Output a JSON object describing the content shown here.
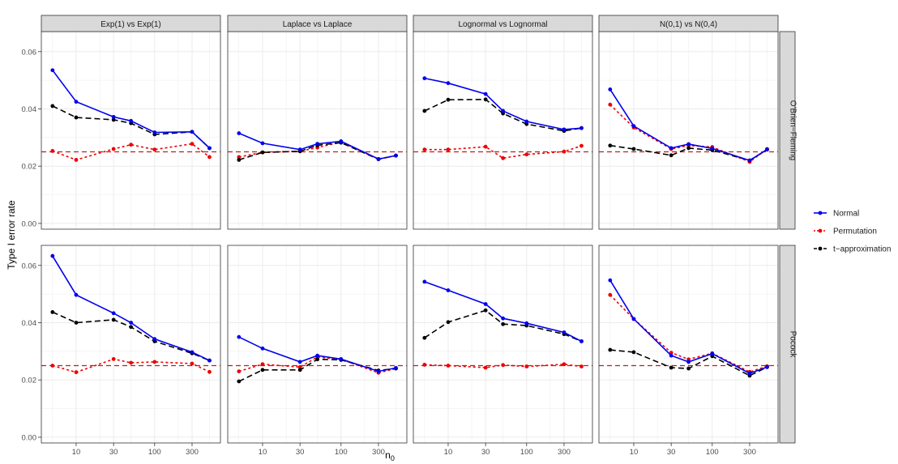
{
  "colors": {
    "normal": "#0000ee",
    "permutation": "#ee0000",
    "t_approximation": "#000000",
    "reference_line": "#b22222",
    "strip_fill": "#d9d9d9",
    "grid": "#ebebeb"
  },
  "chart_data": {
    "type": "line",
    "facet_columns": [
      "Exp(1) vs Exp(1)",
      "Laplace vs Laplace",
      "Lognormal vs Lognormal",
      "N(0,1) vs N(0,4)"
    ],
    "facet_rows": [
      "O'Brien−Fleming",
      "Pocock"
    ],
    "xlabel": "n",
    "xlabel_subscript": "0",
    "ylabel": "Type I error rate",
    "x_scale": "log10",
    "x": [
      5,
      10,
      30,
      50,
      100,
      300,
      500
    ],
    "x_ticks": [
      10,
      30,
      100,
      300
    ],
    "x_tick_labels": [
      "10",
      "30",
      "100",
      "300"
    ],
    "ylim": [
      -0.002,
      0.067
    ],
    "y_ticks": [
      0.0,
      0.02,
      0.04,
      0.06
    ],
    "y_tick_labels": [
      "0.00",
      "0.02",
      "0.04",
      "0.06"
    ],
    "reference_y": 0.025,
    "grid": true,
    "legend_position": "right",
    "legend": [
      {
        "key": "normal",
        "label": "Normal",
        "dash": "solid"
      },
      {
        "key": "permutation",
        "label": "Permutation",
        "dash": "dotted"
      },
      {
        "key": "t_approximation",
        "label": "t−approximation",
        "dash": "dashed"
      }
    ],
    "panels": [
      {
        "row": 0,
        "col": 0,
        "series": {
          "normal": [
            0.0535,
            0.0425,
            0.0372,
            0.0358,
            0.0318,
            0.032,
            0.0263
          ],
          "permutation": [
            0.0253,
            0.0222,
            0.026,
            0.0275,
            0.0258,
            0.0278,
            0.0232
          ],
          "t_approximation": [
            0.041,
            0.037,
            0.0362,
            0.035,
            0.0311,
            0.032,
            0.0263
          ]
        }
      },
      {
        "row": 0,
        "col": 1,
        "series": {
          "normal": [
            0.0315,
            0.028,
            0.0258,
            0.0278,
            0.0287,
            0.0225,
            0.0237
          ],
          "permutation": [
            0.0232,
            0.0248,
            0.0252,
            0.0265,
            0.0284,
            0.0225,
            0.0237
          ],
          "t_approximation": [
            0.0222,
            0.0248,
            0.0252,
            0.0273,
            0.0282,
            0.0224,
            0.0237
          ]
        }
      },
      {
        "row": 0,
        "col": 2,
        "series": {
          "normal": [
            0.0507,
            0.049,
            0.0452,
            0.0393,
            0.0356,
            0.0328,
            0.0333
          ],
          "permutation": [
            0.0258,
            0.0258,
            0.0268,
            0.0228,
            0.0241,
            0.0251,
            0.0271
          ],
          "t_approximation": [
            0.0393,
            0.0432,
            0.0433,
            0.0384,
            0.0347,
            0.0323,
            0.0333
          ]
        }
      },
      {
        "row": 0,
        "col": 3,
        "series": {
          "normal": [
            0.0468,
            0.034,
            0.0263,
            0.0277,
            0.0262,
            0.022,
            0.0258
          ],
          "permutation": [
            0.0415,
            0.0335,
            0.026,
            0.0272,
            0.0267,
            0.0215,
            0.026
          ],
          "t_approximation": [
            0.0272,
            0.026,
            0.0238,
            0.0263,
            0.0256,
            0.022,
            0.0258
          ]
        }
      },
      {
        "row": 1,
        "col": 0,
        "series": {
          "normal": [
            0.0633,
            0.0497,
            0.0433,
            0.04,
            0.0343,
            0.0297,
            0.0268
          ],
          "permutation": [
            0.025,
            0.0227,
            0.0273,
            0.026,
            0.0263,
            0.0257,
            0.0228
          ],
          "t_approximation": [
            0.0437,
            0.04,
            0.041,
            0.0385,
            0.0335,
            0.0293,
            0.0268
          ]
        }
      },
      {
        "row": 1,
        "col": 1,
        "series": {
          "normal": [
            0.035,
            0.031,
            0.0263,
            0.0285,
            0.0273,
            0.023,
            0.0242
          ],
          "permutation": [
            0.023,
            0.0255,
            0.0245,
            0.028,
            0.0272,
            0.0225,
            0.024
          ],
          "t_approximation": [
            0.0195,
            0.0235,
            0.0235,
            0.0272,
            0.027,
            0.0233,
            0.024
          ]
        }
      },
      {
        "row": 1,
        "col": 2,
        "series": {
          "normal": [
            0.0543,
            0.0513,
            0.0465,
            0.0415,
            0.0398,
            0.0366,
            0.0335
          ],
          "permutation": [
            0.0253,
            0.025,
            0.0243,
            0.0252,
            0.0247,
            0.0255,
            0.0247
          ],
          "t_approximation": [
            0.0347,
            0.0402,
            0.0443,
            0.0395,
            0.039,
            0.036,
            0.0335
          ]
        }
      },
      {
        "row": 1,
        "col": 3,
        "series": {
          "normal": [
            0.0548,
            0.0413,
            0.0285,
            0.0263,
            0.0292,
            0.0223,
            0.0245
          ],
          "permutation": [
            0.0497,
            0.0413,
            0.0295,
            0.0272,
            0.0293,
            0.0228,
            0.0248
          ],
          "t_approximation": [
            0.0305,
            0.0297,
            0.0243,
            0.024,
            0.0283,
            0.0215,
            0.0245
          ]
        }
      }
    ]
  }
}
